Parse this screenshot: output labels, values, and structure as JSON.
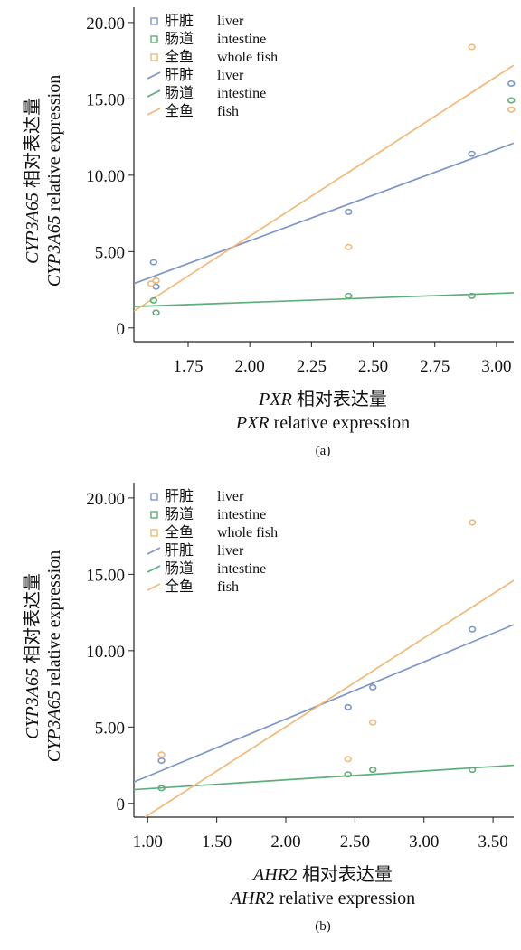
{
  "chart_data": [
    {
      "type": "scatter",
      "panel_label": "(a)",
      "xlabel_zh_var": "PXR",
      "xlabel_zh_rest": " 相对表达量",
      "xlabel_en_var": "PXR",
      "xlabel_en_rest": " relative expression",
      "ylabel_zh_var": "CYP3A65",
      "ylabel_zh_rest": " 相对表达量",
      "ylabel_en_var": "CYP3A65",
      "ylabel_en_rest": " relative expression",
      "xlim": [
        1.53,
        3.07
      ],
      "ylim": [
        -0.9,
        21.0
      ],
      "x_ticks": [
        {
          "v": 1.75,
          "label": "1.75"
        },
        {
          "v": 2.0,
          "label": "2.00"
        },
        {
          "v": 2.25,
          "label": "2.25"
        },
        {
          "v": 2.5,
          "label": "2.50"
        },
        {
          "v": 2.75,
          "label": "2.75"
        },
        {
          "v": 3.0,
          "label": "3.00"
        }
      ],
      "y_ticks": [
        {
          "v": 0,
          "label": "0"
        },
        {
          "v": 5,
          "label": "5.00"
        },
        {
          "v": 10,
          "label": "10.00"
        },
        {
          "v": 15,
          "label": "15.00"
        },
        {
          "v": 20,
          "label": "20.00"
        }
      ],
      "legend": [
        {
          "kind": "point",
          "zh": "肝脏",
          "en": "liver",
          "color": "#7f96c8"
        },
        {
          "kind": "point",
          "zh": "肠道",
          "en": "intestine",
          "color": "#5fae7a"
        },
        {
          "kind": "point",
          "zh": "全鱼",
          "en": "whole fish",
          "color": "#f0b97a"
        },
        {
          "kind": "line",
          "zh": "肝脏",
          "en": "liver",
          "color": "#7f96c8"
        },
        {
          "kind": "line",
          "zh": "肠道",
          "en": "intestine",
          "color": "#5fae7a"
        },
        {
          "kind": "line",
          "zh": "全鱼",
          "en": "fish",
          "color": "#f0b97a"
        }
      ],
      "series": [
        {
          "color": "#7f96c8",
          "points": [
            [
              1.61,
              4.3
            ],
            [
              1.62,
              2.7
            ],
            [
              2.4,
              7.6
            ],
            [
              2.9,
              11.4
            ],
            [
              3.06,
              16.0
            ]
          ]
        },
        {
          "color": "#5fae7a",
          "points": [
            [
              1.61,
              1.8
            ],
            [
              1.62,
              1.0
            ],
            [
              2.4,
              2.1
            ],
            [
              2.9,
              2.1
            ],
            [
              3.06,
              14.9
            ]
          ]
        },
        {
          "color": "#f0b97a",
          "points": [
            [
              1.6,
              2.9
            ],
            [
              1.62,
              3.1
            ],
            [
              2.4,
              5.3
            ],
            [
              2.9,
              18.4
            ],
            [
              3.06,
              14.3
            ]
          ]
        }
      ],
      "fit_lines": [
        {
          "color": "#7f96c8",
          "from": [
            1.53,
            2.9
          ],
          "to": [
            3.07,
            12.1
          ]
        },
        {
          "color": "#5fae7a",
          "from": [
            1.53,
            1.4
          ],
          "to": [
            3.07,
            2.3
          ]
        },
        {
          "color": "#f0b97a",
          "from": [
            1.53,
            1.1
          ],
          "to": [
            3.07,
            17.2
          ]
        }
      ]
    },
    {
      "type": "scatter",
      "panel_label": "(b)",
      "xlabel_zh_var": "AHR",
      "xlabel_zh_rest": "2 相对表达量",
      "xlabel_en_var": "AHR",
      "xlabel_en_rest": "2 relative expression",
      "ylabel_zh_var": "CYP3A65",
      "ylabel_zh_rest": " 相对表达量",
      "ylabel_en_var": "CYP3A65",
      "ylabel_en_rest": " relative expression",
      "xlim": [
        0.9,
        3.65
      ],
      "ylim": [
        -0.9,
        21.0
      ],
      "x_ticks": [
        {
          "v": 1.0,
          "label": "1.00"
        },
        {
          "v": 1.5,
          "label": "1.50"
        },
        {
          "v": 2.0,
          "label": "2.00"
        },
        {
          "v": 2.5,
          "label": "2.50"
        },
        {
          "v": 3.0,
          "label": "3.00"
        },
        {
          "v": 3.5,
          "label": "3.50"
        }
      ],
      "y_ticks": [
        {
          "v": 0,
          "label": "0"
        },
        {
          "v": 5,
          "label": "5.00"
        },
        {
          "v": 10,
          "label": "10.00"
        },
        {
          "v": 15,
          "label": "15.00"
        },
        {
          "v": 20,
          "label": "20.00"
        }
      ],
      "legend": [
        {
          "kind": "point",
          "zh": "肝脏",
          "en": "liver",
          "color": "#7f96c8"
        },
        {
          "kind": "point",
          "zh": "肠道",
          "en": "intestine",
          "color": "#5fae7a"
        },
        {
          "kind": "point",
          "zh": "全鱼",
          "en": "whole fish",
          "color": "#f0b97a"
        },
        {
          "kind": "line",
          "zh": "肝脏",
          "en": "liver",
          "color": "#7f96c8"
        },
        {
          "kind": "line",
          "zh": "肠道",
          "en": "intestine",
          "color": "#5fae7a"
        },
        {
          "kind": "line",
          "zh": "全鱼",
          "en": "fish",
          "color": "#f0b97a"
        }
      ],
      "series": [
        {
          "color": "#7f96c8",
          "points": [
            [
              1.1,
              2.8
            ],
            [
              2.45,
              6.3
            ],
            [
              2.63,
              7.6
            ],
            [
              3.35,
              11.4
            ]
          ]
        },
        {
          "color": "#5fae7a",
          "points": [
            [
              1.1,
              1.0
            ],
            [
              2.45,
              1.9
            ],
            [
              2.63,
              2.2
            ],
            [
              3.35,
              2.2
            ]
          ]
        },
        {
          "color": "#f0b97a",
          "points": [
            [
              1.1,
              3.2
            ],
            [
              2.45,
              2.9
            ],
            [
              2.63,
              5.3
            ],
            [
              3.35,
              18.4
            ]
          ]
        }
      ],
      "fit_lines": [
        {
          "color": "#7f96c8",
          "from": [
            0.9,
            1.4
          ],
          "to": [
            3.65,
            11.7
          ]
        },
        {
          "color": "#5fae7a",
          "from": [
            0.9,
            0.9
          ],
          "to": [
            3.65,
            2.5
          ]
        },
        {
          "color": "#f0b97a",
          "from": [
            0.98,
            -0.9
          ],
          "to": [
            3.65,
            14.6
          ]
        }
      ]
    }
  ]
}
